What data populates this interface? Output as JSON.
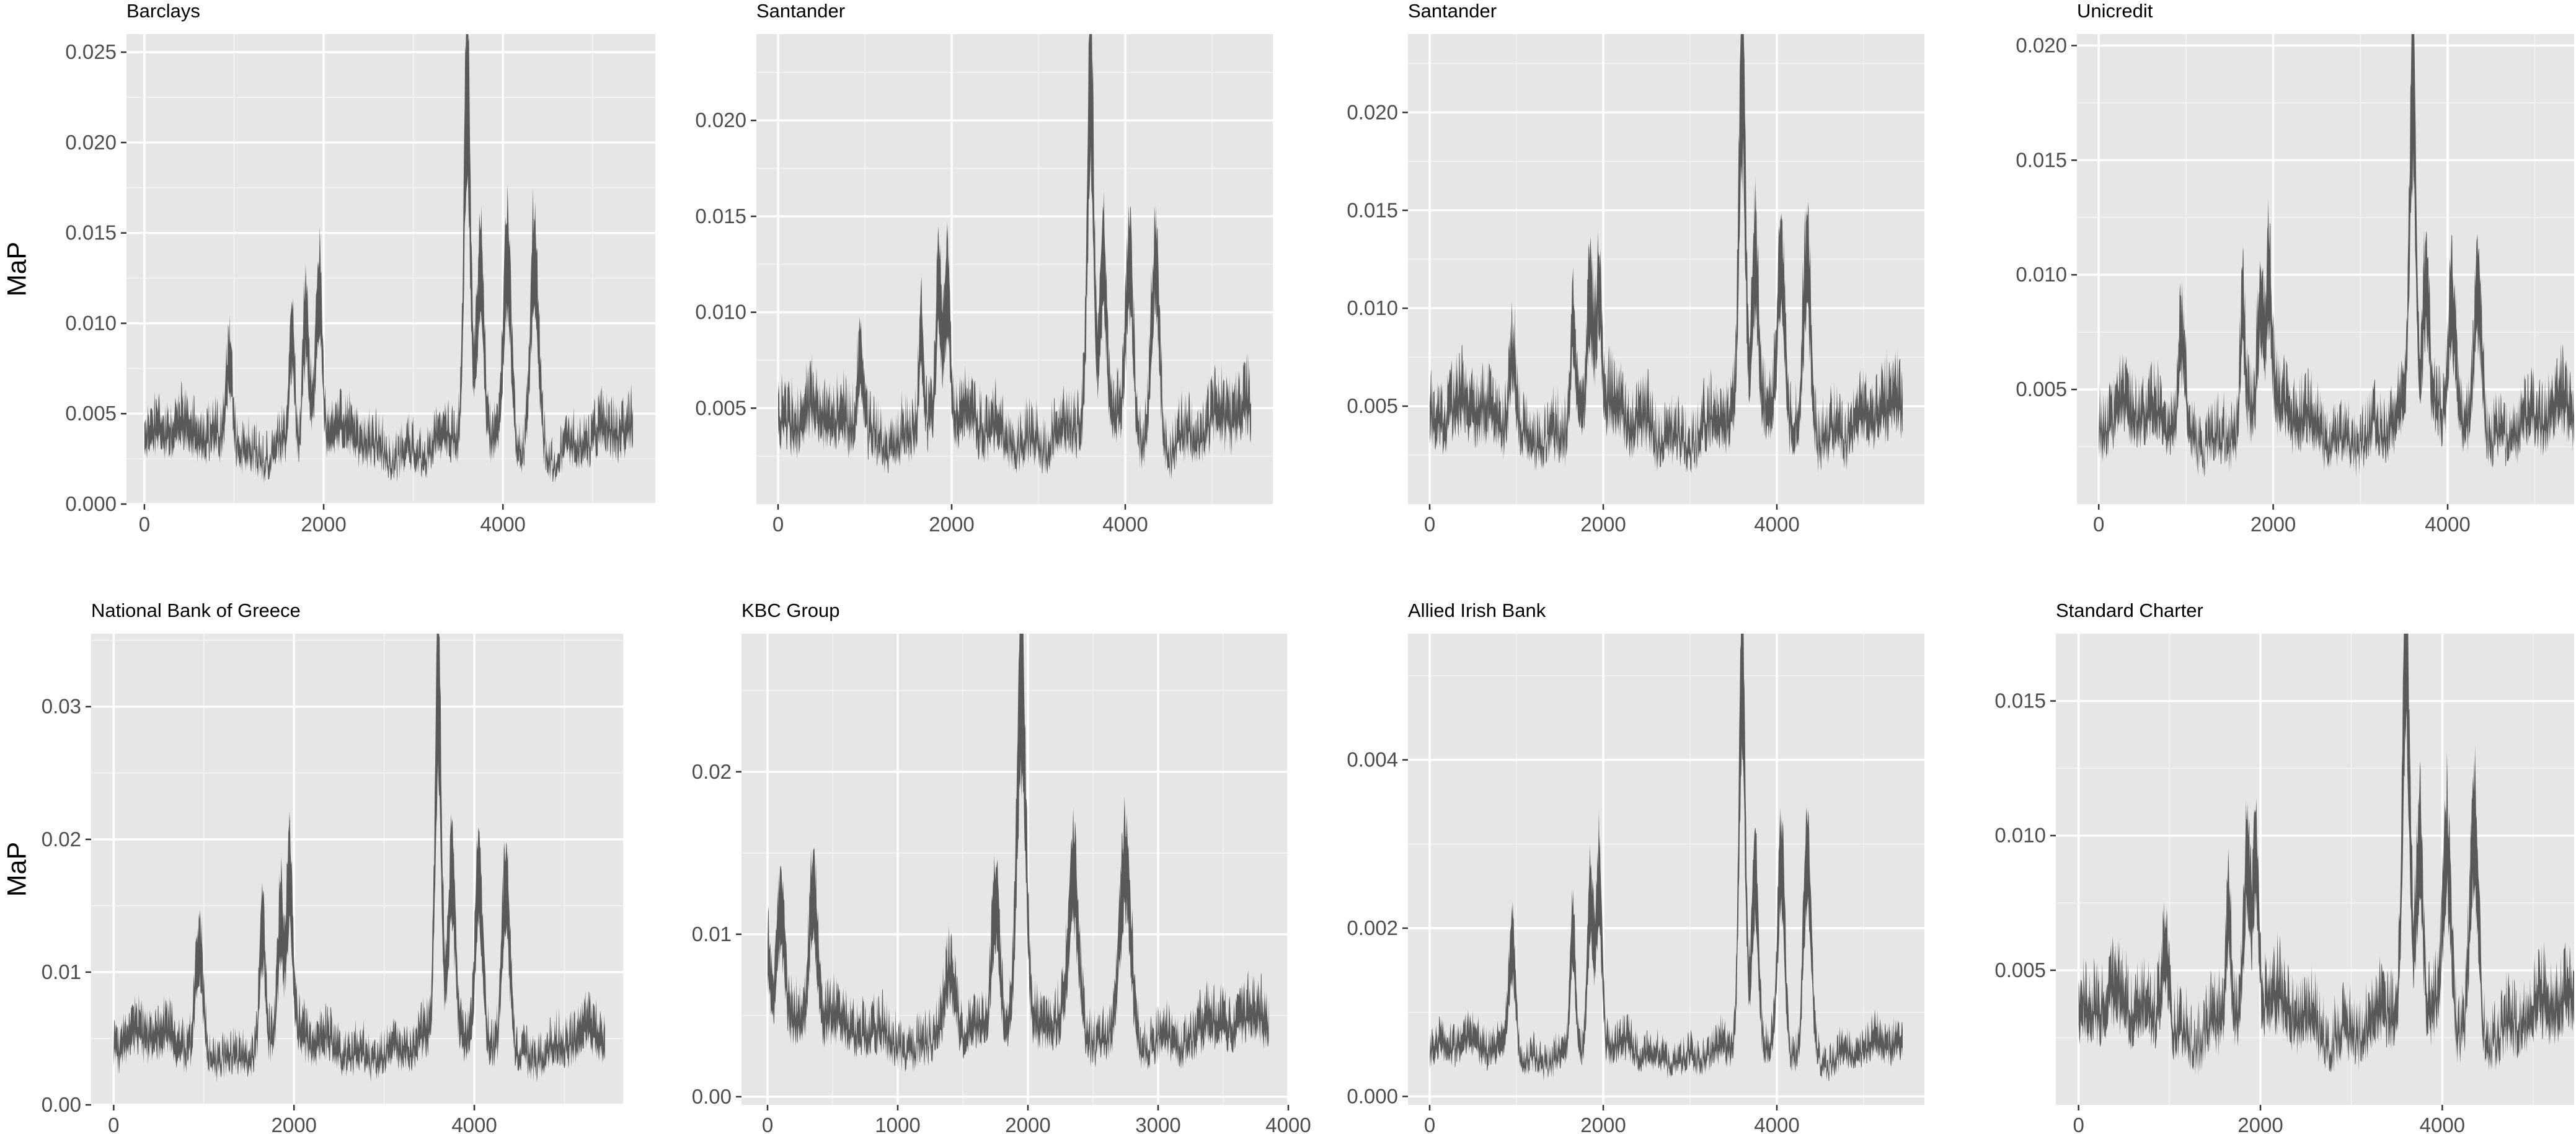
{
  "colors": {
    "panel_background": "#e6e6e6",
    "band": "#4d4d4d",
    "grid": "#ffffff",
    "tick_text": "#4d4d4d"
  },
  "y_axis_title": "MaP",
  "chart_data": [
    {
      "type": "area",
      "title": "Barclays",
      "ylabel": "MaP",
      "xlim": [
        -200,
        5700
      ],
      "ylim": [
        0,
        0.026
      ],
      "xticks": [
        0,
        2000,
        4000
      ],
      "xtick_labels": [
        "0",
        "2000",
        "4000"
      ],
      "yticks": [
        0,
        0.005,
        0.01,
        0.015,
        0.02,
        0.025
      ],
      "ytick_labels": [
        "0.000",
        "0.005",
        "0.010",
        "0.015",
        "0.020",
        "0.025"
      ],
      "band_x_max": 5450,
      "base_level": 0.0035,
      "peaks": [
        [
          950,
          0.0085
        ],
        [
          1650,
          0.0095
        ],
        [
          1800,
          0.01
        ],
        [
          1950,
          0.011
        ],
        [
          3600,
          0.022
        ],
        [
          3750,
          0.012
        ],
        [
          4050,
          0.013
        ],
        [
          4350,
          0.014
        ]
      ],
      "series": [
        {
          "values": "band"
        }
      ]
    },
    {
      "type": "area",
      "title": "Santander",
      "ylabel": "",
      "xlim": [
        -250,
        5700
      ],
      "ylim": [
        0,
        0.0245
      ],
      "xticks": [
        0,
        2000,
        4000
      ],
      "xtick_labels": [
        "0",
        "2000",
        "4000"
      ],
      "yticks": [
        0.005,
        0.01,
        0.015,
        0.02
      ],
      "ytick_labels": [
        "0.005",
        "0.010",
        "0.015",
        "0.020"
      ],
      "band_x_max": 5450,
      "base_level": 0.004,
      "peaks": [
        [
          950,
          0.0085
        ],
        [
          1650,
          0.0095
        ],
        [
          1850,
          0.01
        ],
        [
          1950,
          0.011
        ],
        [
          3600,
          0.021
        ],
        [
          3750,
          0.012
        ],
        [
          4050,
          0.0125
        ],
        [
          4350,
          0.013
        ]
      ],
      "series": [
        {
          "values": "band"
        }
      ]
    },
    {
      "type": "area",
      "title": "Santander",
      "ylabel": "",
      "xlim": [
        -250,
        5700
      ],
      "ylim": [
        0,
        0.024
      ],
      "xticks": [
        0,
        2000,
        4000
      ],
      "xtick_labels": [
        "0",
        "2000",
        "4000"
      ],
      "yticks": [
        0.005,
        0.01,
        0.015,
        0.02
      ],
      "ytick_labels": [
        "0.005",
        "0.010",
        "0.015",
        "0.020"
      ],
      "band_x_max": 5450,
      "base_level": 0.0042,
      "peaks": [
        [
          950,
          0.0085
        ],
        [
          1650,
          0.0095
        ],
        [
          1850,
          0.01
        ],
        [
          1950,
          0.011
        ],
        [
          3600,
          0.021
        ],
        [
          3750,
          0.012
        ],
        [
          4050,
          0.0125
        ],
        [
          4350,
          0.013
        ]
      ],
      "series": [
        {
          "values": "band"
        }
      ]
    },
    {
      "type": "area",
      "title": "Unicredit",
      "ylabel": "",
      "xlim": [
        -250,
        5450
      ],
      "ylim": [
        0,
        0.0205
      ],
      "xticks": [
        0,
        2000,
        4000
      ],
      "xtick_labels": [
        "0",
        "2000",
        "4000"
      ],
      "yticks": [
        0.005,
        0.01,
        0.015,
        0.02
      ],
      "ytick_labels": [
        "0.005",
        "0.010",
        "0.015",
        "0.020"
      ],
      "band_x_max": 5450,
      "base_level": 0.0035,
      "peaks": [
        [
          950,
          0.0075
        ],
        [
          1650,
          0.008
        ],
        [
          1850,
          0.0085
        ],
        [
          1950,
          0.0095
        ],
        [
          3600,
          0.0175
        ],
        [
          3750,
          0.009
        ],
        [
          4050,
          0.009
        ],
        [
          4350,
          0.0105
        ]
      ],
      "series": [
        {
          "values": "band"
        }
      ]
    },
    {
      "type": "area",
      "title": "National Bank of Greece",
      "ylabel": "MaP",
      "xlim": [
        -250,
        5650
      ],
      "ylim": [
        0,
        0.0355
      ],
      "xticks": [
        0,
        2000,
        4000
      ],
      "xtick_labels": [
        "0",
        "2000",
        "4000"
      ],
      "yticks": [
        0,
        0.01,
        0.02,
        0.03
      ],
      "ytick_labels": [
        "0.00",
        "0.01",
        "0.02",
        "0.03"
      ],
      "band_x_max": 5450,
      "base_level": 0.0045,
      "peaks": [
        [
          950,
          0.012
        ],
        [
          1650,
          0.013
        ],
        [
          1850,
          0.014
        ],
        [
          1950,
          0.016
        ],
        [
          3600,
          0.031
        ],
        [
          3750,
          0.016
        ],
        [
          4050,
          0.017
        ],
        [
          4350,
          0.018
        ]
      ],
      "series": [
        {
          "values": "band"
        }
      ]
    },
    {
      "type": "area",
      "title": "KBC Group",
      "ylabel": "",
      "xlim": [
        -200,
        4000
      ],
      "ylim": [
        -0.0005,
        0.0285
      ],
      "xticks": [
        0,
        1000,
        2000,
        3000,
        4000
      ],
      "xtick_labels": [
        "0",
        "1000",
        "2000",
        "3000",
        "4000"
      ],
      "yticks": [
        0,
        0.01,
        0.02
      ],
      "ytick_labels": [
        "0.00",
        "0.01",
        "0.02"
      ],
      "band_x_max": 3850,
      "base_level": 0.004,
      "peaks": [
        [
          0,
          0.009
        ],
        [
          100,
          0.011
        ],
        [
          350,
          0.012
        ],
        [
          1400,
          0.009
        ],
        [
          1750,
          0.012
        ],
        [
          1950,
          0.024
        ],
        [
          2350,
          0.013
        ],
        [
          2750,
          0.015
        ]
      ],
      "series": [
        {
          "values": "band"
        }
      ]
    },
    {
      "type": "area",
      "title": "Allied Irish Bank",
      "ylabel": "",
      "xlim": [
        -250,
        5700
      ],
      "ylim": [
        -0.0001,
        0.0055
      ],
      "xticks": [
        0,
        2000,
        4000
      ],
      "xtick_labels": [
        "0",
        "2000",
        "4000"
      ],
      "yticks": [
        0,
        0.002,
        0.004
      ],
      "ytick_labels": [
        "0.000",
        "0.002",
        "0.004"
      ],
      "band_x_max": 5450,
      "base_level": 0.00055,
      "peaks": [
        [
          950,
          0.0019
        ],
        [
          1650,
          0.002
        ],
        [
          1850,
          0.0022
        ],
        [
          1950,
          0.0024
        ],
        [
          3600,
          0.005
        ],
        [
          3750,
          0.0025
        ],
        [
          4050,
          0.0027
        ],
        [
          4350,
          0.0029
        ]
      ],
      "series": [
        {
          "values": "band"
        }
      ]
    },
    {
      "type": "area",
      "title": "Standard Charter",
      "ylabel": "",
      "xlim": [
        -250,
        5450
      ],
      "ylim": [
        0,
        0.0175
      ],
      "xticks": [
        0,
        2000,
        4000
      ],
      "xtick_labels": [
        "0",
        "2000",
        "4000"
      ],
      "yticks": [
        0.005,
        0.01,
        0.015
      ],
      "ytick_labels": [
        "0.005",
        "0.010",
        "0.015"
      ],
      "band_x_max": 5450,
      "base_level": 0.0033,
      "peaks": [
        [
          950,
          0.0065
        ],
        [
          1650,
          0.0075
        ],
        [
          1850,
          0.008
        ],
        [
          1950,
          0.0085
        ],
        [
          3600,
          0.0165
        ],
        [
          3750,
          0.009
        ],
        [
          4050,
          0.0095
        ],
        [
          4350,
          0.0105
        ]
      ],
      "series": [
        {
          "values": "band"
        }
      ]
    }
  ]
}
